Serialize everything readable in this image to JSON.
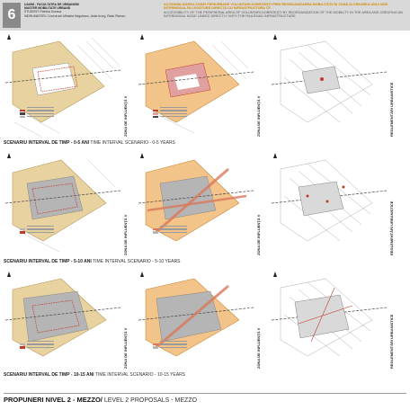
{
  "header": {
    "number": "6",
    "meta_lines": [
      "UAUIM - FACULTATEA DE URBANISM",
      "MASTER MOBILITATE URBANĂ",
      "STUDENT: Patricia Suzana",
      "INDRUMATORI: Conf.dr.arh.Mihaela Negulescu, Asist.dr.ing. Radu Pițescu"
    ],
    "title_ro": "ACCESIBILIZAREA ZONEI PERIURBANE VOLUNTARI-DOBROEȘTI PRIN REORGANIZAREA MOBILITĂȚII ÎN ZONĂ ȘI CREAREA UNUI NOD INTERMODAL ÎN LEGĂTURĂ DIRECTĂ CU INFRASTRUCTURA CF",
    "title_en": "ACCESSIBILITY OF THE PERIPHERAL AREA OF VOLUNTARI-DOBROEȘTI BY REORGANIZATION OF THE MOBILITY IN THE AREA AND CREATING AN INTERMODAL NODE LINKED DIRECTLY WITH THE RAILROAD INFRASTRUCTURE",
    "accent_color": "#d48a00"
  },
  "columns": {
    "zone_label": "ZONA DE INFLUENȚĂ V",
    "regulation_label": "REGLEMENTĂRI URBANISTICE"
  },
  "scenarios": [
    {
      "label_ro": "SCENARIU INTERVAL DE TIMP - 0-5 ANI",
      "label_en": "TIME INTERVAL SCENARIO - 0-5 YEARS"
    },
    {
      "label_ro": "SCENARIU INTERVAL DE TIMP - 5-10 ANI",
      "label_en": "TIME INTERVAL SCENARIO - 5-10 YEARS"
    },
    {
      "label_ro": "SCENARIU INTERVAL DE TIMP - 10-15 ANI",
      "label_en": "TIME INTERVAL SCENARIO - 10-15 YEARS"
    }
  ],
  "footer": {
    "proposal_ro": "PROPUNERI NIVEL 2 - MEZZO/",
    "proposal_en": "LEVEL 2 PROPOSALS - MEZZO"
  },
  "colors": {
    "orange_fill": "#f2c48a",
    "tan_fill": "#e8d3a0",
    "grey_fill": "#b5b5b5",
    "red_route": "#c0392b",
    "dark_line": "#444444"
  }
}
